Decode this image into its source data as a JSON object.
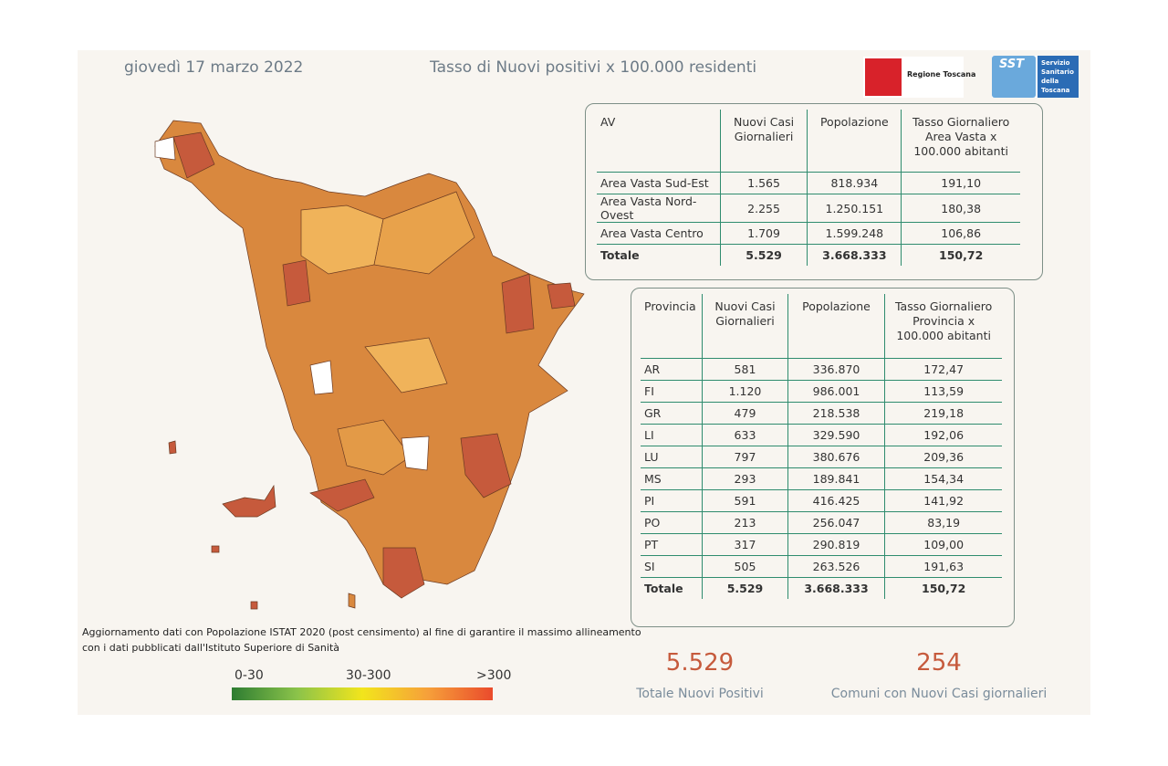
{
  "header": {
    "date": "giovedì 17 marzo 2022",
    "title": "Tasso di Nuovi positivi x 100.000 residenti",
    "logo_regione": "Regione Toscana",
    "logo_sst": "SST",
    "logo_sst_text": [
      "Servizio",
      "Sanitario",
      "della",
      "Toscana"
    ]
  },
  "av_table": {
    "columns": [
      "AV",
      "Nuovi Casi Giornalieri",
      "Popolazione",
      "Tasso Giornaliero Area Vasta x 100.000 abitanti"
    ],
    "rows": [
      [
        "Area Vasta Sud-Est",
        "1.565",
        "818.934",
        "191,10"
      ],
      [
        "Area Vasta Nord-Ovest",
        "2.255",
        "1.250.151",
        "180,38"
      ],
      [
        "Area Vasta Centro",
        "1.709",
        "1.599.248",
        "106,86"
      ]
    ],
    "total": [
      "Totale",
      "5.529",
      "3.668.333",
      "150,72"
    ]
  },
  "province_table": {
    "columns": [
      "Provincia",
      "Nuovi Casi Giornalieri",
      "Popolazione",
      "Tasso Giornaliero Provincia x 100.000 abitanti"
    ],
    "rows": [
      [
        "AR",
        "581",
        "336.870",
        "172,47"
      ],
      [
        "FI",
        "1.120",
        "986.001",
        "113,59"
      ],
      [
        "GR",
        "479",
        "218.538",
        "219,18"
      ],
      [
        "LI",
        "633",
        "329.590",
        "192,06"
      ],
      [
        "LU",
        "797",
        "380.676",
        "209,36"
      ],
      [
        "MS",
        "293",
        "189.841",
        "154,34"
      ],
      [
        "PI",
        "591",
        "416.425",
        "141,92"
      ],
      [
        "PO",
        "213",
        "256.047",
        "83,19"
      ],
      [
        "PT",
        "317",
        "290.819",
        "109,00"
      ],
      [
        "SI",
        "505",
        "263.526",
        "191,63"
      ]
    ],
    "total": [
      "Totale",
      "5.529",
      "3.668.333",
      "150,72"
    ]
  },
  "note": [
    "Aggiornamento dati con Popolazione ISTAT 2020 (post censimento) al fine di garantire il massimo allineamento",
    "con i dati pubblicati dall'Istituto Superiore di Sanità"
  ],
  "legend": {
    "labels": [
      "0-30",
      "30-300",
      ">300"
    ]
  },
  "kpis": [
    {
      "value": "5.529",
      "label": "Totale Nuovi Positivi"
    },
    {
      "value": "254",
      "label": "Comuni con Nuovi Casi giornalieri"
    }
  ]
}
